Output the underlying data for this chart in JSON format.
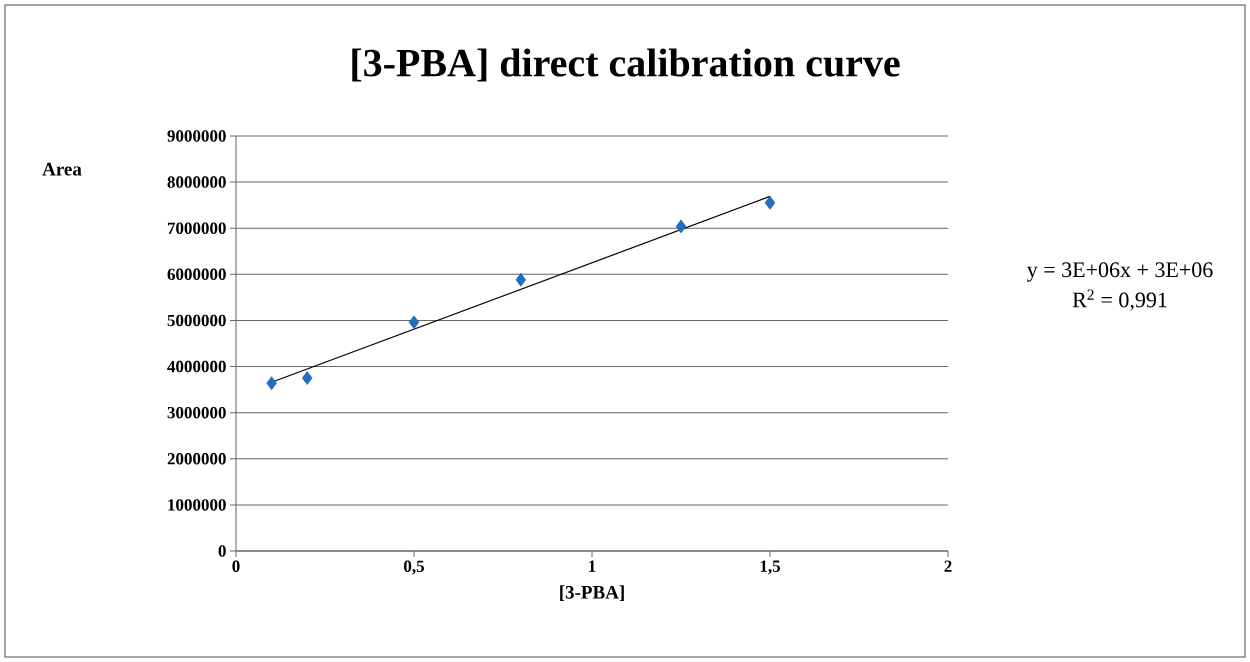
{
  "chart_data": {
    "type": "scatter",
    "title": "[3-PBA] direct calibration curve",
    "xlabel": "[3-PBA]",
    "ylabel": "Area",
    "xlim": [
      0,
      2
    ],
    "xticks": [
      0,
      {
        "value": 0.5,
        "label": "0,5"
      },
      1,
      {
        "value": 1.5,
        "label": "1,5"
      },
      2
    ],
    "ylim": [
      0,
      9000000
    ],
    "yticks": [
      0,
      1000000,
      2000000,
      3000000,
      4000000,
      5000000,
      6000000,
      7000000,
      8000000,
      9000000
    ],
    "grid": "y",
    "marker": "diamond",
    "series": [
      {
        "color": "#1f6fc5",
        "x": [
          0.1,
          0.2,
          0.5,
          0.8,
          1.25,
          1.5
        ],
        "values": [
          3640000,
          3750000,
          4960000,
          5880000,
          7040000,
          7550000
        ]
      },
      {
        "type": "line",
        "color": "#000000",
        "marker": "none",
        "x": [
          0.1,
          1.5
        ],
        "values": [
          3660000,
          7690000
        ]
      }
    ],
    "annotations": [
      "y = 3E+06x + 3E+06",
      "R$^{2}$ = 0,991"
    ]
  }
}
